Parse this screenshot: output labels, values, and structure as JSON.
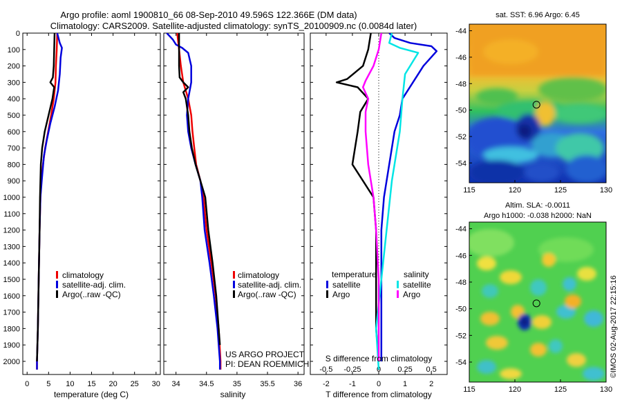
{
  "title": {
    "line1": "Argo profile: aoml 1900810_66 08-Sep-2010 49.596S 122.366E (DM data)",
    "line2": "Climatology: CARS2009. Satellite-adjusted climatology: synTS_20100909.nc (0.0084d later)"
  },
  "colors": {
    "climatology": "#ee0000",
    "satellite": "#0000dd",
    "argo": "#000000",
    "satellite_s": "#00e5e5",
    "argo_s": "#ff00ff"
  },
  "chart_data": [
    {
      "type": "line",
      "id": "temperature",
      "xlabel": "temperature (deg C)",
      "xlim": [
        -1,
        31
      ],
      "xticks": [
        0,
        5,
        10,
        15,
        20,
        25,
        30
      ],
      "ylim": [
        2080,
        0
      ],
      "yticks": [
        0,
        100,
        200,
        300,
        400,
        500,
        600,
        700,
        800,
        900,
        1000,
        1100,
        1200,
        1300,
        1400,
        1500,
        1600,
        1700,
        1800,
        1900,
        2000
      ],
      "legend": [
        "climatology",
        "satellite-adj. clim.",
        "Argo(..raw -QC)"
      ],
      "series": [
        {
          "name": "climatology",
          "color": "#ee0000",
          "points": [
            [
              7.0,
              0
            ],
            [
              6.9,
              100
            ],
            [
              6.7,
              200
            ],
            [
              6.6,
              300
            ],
            [
              6.2,
              400
            ],
            [
              5.6,
              500
            ],
            [
              4.9,
              600
            ],
            [
              4.2,
              700
            ],
            [
              3.7,
              800
            ],
            [
              3.3,
              900
            ],
            [
              3.1,
              1000
            ],
            [
              2.9,
              1200
            ],
            [
              2.7,
              1500
            ],
            [
              2.5,
              1800
            ],
            [
              2.3,
              2000
            ],
            [
              2.3,
              2050
            ]
          ]
        },
        {
          "name": "satellite-adj. clim.",
          "color": "#0000dd",
          "points": [
            [
              7.0,
              0
            ],
            [
              7.6,
              60
            ],
            [
              8.1,
              90
            ],
            [
              7.8,
              150
            ],
            [
              7.6,
              250
            ],
            [
              7.2,
              350
            ],
            [
              6.4,
              450
            ],
            [
              5.4,
              550
            ],
            [
              4.6,
              650
            ],
            [
              3.9,
              750
            ],
            [
              3.4,
              900
            ],
            [
              3.1,
              1000
            ],
            [
              2.9,
              1200
            ],
            [
              2.7,
              1500
            ],
            [
              2.5,
              1800
            ],
            [
              2.3,
              2000
            ],
            [
              2.3,
              2050
            ]
          ]
        },
        {
          "name": "Argo(..raw -QC)",
          "color": "#000000",
          "points": [
            [
              6.4,
              0
            ],
            [
              6.3,
              100
            ],
            [
              6.2,
              200
            ],
            [
              6.0,
              270
            ],
            [
              5.4,
              300
            ],
            [
              6.3,
              330
            ],
            [
              5.9,
              400
            ],
            [
              5.0,
              500
            ],
            [
              4.1,
              600
            ],
            [
              3.5,
              700
            ],
            [
              3.2,
              800
            ],
            [
              3.1,
              900
            ],
            [
              3.0,
              1000
            ],
            [
              2.9,
              1200
            ],
            [
              2.7,
              1500
            ],
            [
              2.5,
              1800
            ],
            [
              2.3,
              2000
            ]
          ]
        }
      ]
    },
    {
      "type": "line",
      "id": "salinity",
      "xlabel": "salinity",
      "xlim": [
        33.8,
        36.1
      ],
      "xticks": [
        34,
        34.5,
        35,
        35.5,
        36
      ],
      "ylim": [
        2080,
        0
      ],
      "legend": [
        "climatology",
        "satellite-adj. clim.",
        "Argo(..raw -QC)"
      ],
      "annotation": [
        "US ARGO PROJECT",
        "PI: DEAN ROEMMICH"
      ],
      "series": [
        {
          "name": "climatology",
          "color": "#ee0000",
          "points": [
            [
              34.02,
              0
            ],
            [
              34.05,
              100
            ],
            [
              34.08,
              200
            ],
            [
              34.12,
              300
            ],
            [
              34.2,
              400
            ],
            [
              34.25,
              500
            ],
            [
              34.27,
              600
            ],
            [
              34.3,
              700
            ],
            [
              34.33,
              800
            ],
            [
              34.4,
              900
            ],
            [
              34.45,
              1000
            ],
            [
              34.5,
              1200
            ],
            [
              34.58,
              1400
            ],
            [
              34.65,
              1600
            ],
            [
              34.7,
              1800
            ],
            [
              34.73,
              2000
            ],
            [
              34.73,
              2050
            ]
          ]
        },
        {
          "name": "satellite-adj. clim.",
          "color": "#0000dd",
          "points": [
            [
              33.85,
              0
            ],
            [
              33.95,
              40
            ],
            [
              34.0,
              70
            ],
            [
              34.1,
              90
            ],
            [
              34.2,
              120
            ],
            [
              34.25,
              200
            ],
            [
              34.25,
              300
            ],
            [
              34.2,
              400
            ],
            [
              34.18,
              500
            ],
            [
              34.2,
              600
            ],
            [
              34.25,
              700
            ],
            [
              34.32,
              800
            ],
            [
              34.4,
              900
            ],
            [
              34.43,
              1000
            ],
            [
              34.47,
              1200
            ],
            [
              34.55,
              1400
            ],
            [
              34.62,
              1600
            ],
            [
              34.68,
              1800
            ],
            [
              34.72,
              2000
            ],
            [
              34.72,
              2050
            ]
          ]
        },
        {
          "name": "Argo(..raw -QC)",
          "color": "#000000",
          "points": [
            [
              34.05,
              0
            ],
            [
              34.05,
              100
            ],
            [
              34.05,
              200
            ],
            [
              34.06,
              270
            ],
            [
              34.12,
              300
            ],
            [
              34.2,
              330
            ],
            [
              34.12,
              360
            ],
            [
              34.16,
              400
            ],
            [
              34.2,
              500
            ],
            [
              34.22,
              600
            ],
            [
              34.26,
              700
            ],
            [
              34.32,
              800
            ],
            [
              34.4,
              900
            ],
            [
              34.48,
              1000
            ],
            [
              34.53,
              1200
            ],
            [
              34.6,
              1400
            ],
            [
              34.66,
              1600
            ],
            [
              34.7,
              1800
            ],
            [
              34.72,
              1900
            ]
          ]
        }
      ]
    },
    {
      "type": "line",
      "id": "difference",
      "xlabel": "T difference from climatology",
      "xlabel_top": "S difference from climatology",
      "xlim": [
        -2.6,
        2.6
      ],
      "xticks": [
        -2,
        -1,
        0,
        1,
        2
      ],
      "top_ticks": [
        {
          "v": -2,
          "label": "-0.5"
        },
        {
          "v": -1,
          "label": "-0.25"
        },
        {
          "v": 0,
          "label": "0"
        },
        {
          "v": 1,
          "label": "0.25"
        },
        {
          "v": 2,
          "label": "0.5"
        }
      ],
      "ylim": [
        2080,
        0
      ],
      "legend_headers": [
        "temperature",
        "salinity"
      ],
      "legend": [
        "satellite",
        "Argo",
        "satellite",
        "Argo"
      ],
      "series": [
        {
          "name": "satellite",
          "color": "#0000dd",
          "points": [
            [
              0.4,
              0
            ],
            [
              0.6,
              30
            ],
            [
              1.2,
              60
            ],
            [
              2.0,
              80
            ],
            [
              2.2,
              110
            ],
            [
              1.7,
              200
            ],
            [
              1.3,
              300
            ],
            [
              0.9,
              400
            ],
            [
              0.8,
              500
            ],
            [
              0.6,
              600
            ],
            [
              0.5,
              700
            ],
            [
              0.3,
              900
            ],
            [
              0.2,
              1000
            ],
            [
              0.1,
              1200
            ],
            [
              0.1,
              1500
            ],
            [
              0.1,
              1800
            ],
            [
              0.1,
              2000
            ]
          ]
        },
        {
          "name": "Argo",
          "color": "#000000",
          "points": [
            [
              -0.3,
              0
            ],
            [
              -0.4,
              100
            ],
            [
              -0.6,
              200
            ],
            [
              -1.2,
              280
            ],
            [
              -1.6,
              300
            ],
            [
              -0.8,
              330
            ],
            [
              -0.4,
              400
            ],
            [
              -0.7,
              480
            ],
            [
              -0.8,
              600
            ],
            [
              -0.9,
              700
            ],
            [
              -1.0,
              800
            ],
            [
              -0.6,
              900
            ],
            [
              -0.2,
              1000
            ],
            [
              -0.1,
              1200
            ],
            [
              -0.1,
              1500
            ],
            [
              -0.1,
              1800
            ],
            [
              0.0,
              2000
            ]
          ]
        },
        {
          "name": "satellite",
          "color": "#00e5e5",
          "points": [
            [
              0.5,
              0
            ],
            [
              0.4,
              60
            ],
            [
              0.8,
              90
            ],
            [
              1.5,
              120
            ],
            [
              1.0,
              250
            ],
            [
              0.9,
              400
            ],
            [
              0.8,
              600
            ],
            [
              0.5,
              900
            ],
            [
              0.3,
              1200
            ],
            [
              0.1,
              1500
            ],
            [
              -0.1,
              1800
            ],
            [
              0.0,
              2050
            ]
          ]
        },
        {
          "name": "Argo",
          "color": "#ff00ff",
          "points": [
            [
              0.1,
              0
            ],
            [
              0.0,
              100
            ],
            [
              -0.2,
              200
            ],
            [
              -0.5,
              290
            ],
            [
              -0.6,
              330
            ],
            [
              -0.4,
              400
            ],
            [
              -0.5,
              480
            ],
            [
              -0.5,
              600
            ],
            [
              -0.4,
              800
            ],
            [
              -0.2,
              1000
            ],
            [
              -0.1,
              1200
            ],
            [
              0.0,
              1500
            ],
            [
              0.0,
              1800
            ],
            [
              0.0,
              2000
            ]
          ]
        }
      ]
    },
    {
      "type": "heatmap",
      "id": "sst-map",
      "title": "sat. SST: 6.96 Argo: 6.45",
      "xlim": [
        115,
        130
      ],
      "xticks": [
        115,
        120,
        125,
        130
      ],
      "ylim": [
        -55.5,
        -43.5
      ],
      "yticks": [
        -44,
        -46,
        -48,
        -50,
        -52,
        -54
      ],
      "marker": [
        122.366,
        -49.596
      ]
    },
    {
      "type": "heatmap",
      "id": "sla-map",
      "title_lines": [
        "Altim. SLA: -0.0011",
        "Argo h1000: -0.038 h2000: NaN"
      ],
      "xlim": [
        115,
        130
      ],
      "xticks": [
        115,
        120,
        125,
        130
      ],
      "ylim": [
        -55.5,
        -43.5
      ],
      "yticks": [
        -44,
        -46,
        -48,
        -50,
        -52,
        -54
      ],
      "marker": [
        122.366,
        -49.596
      ]
    }
  ],
  "watermark": "©IMOS 02-Aug-2017 22:15:16"
}
